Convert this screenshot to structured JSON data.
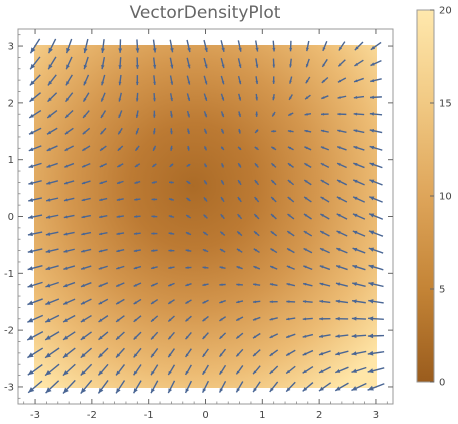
{
  "chart_data": {
    "type": "vector_density",
    "title": "VectorDensityPlot",
    "xlabel": "",
    "ylabel": "",
    "xlim": [
      -3.3,
      3.3
    ],
    "ylim": [
      -3.3,
      3.3
    ],
    "xticks": [
      -3,
      -2,
      -1,
      0,
      1,
      2,
      3
    ],
    "yticks": [
      -3,
      -2,
      -1,
      0,
      1,
      2,
      3
    ],
    "grid": false,
    "density_center": [
      -0.2,
      0.6
    ],
    "density_range": [
      0,
      20
    ],
    "colorbar": {
      "ticks": [
        0,
        5,
        10,
        15,
        20
      ],
      "colors": [
        "#9a5c1d",
        "#c48436",
        "#dea55a",
        "#f1c983",
        "#ffe8ad"
      ]
    },
    "arrow_color": "#4a6694",
    "vector_field": {
      "grid_spacing": 0.3,
      "sample_points": [
        {
          "x": -3.0,
          "y": 3.0,
          "u": -0.5,
          "v": -0.9
        },
        {
          "x": -3.0,
          "y": -3.0,
          "u": -0.7,
          "v": -0.6
        },
        {
          "x": 3.0,
          "y": -3.0,
          "u": -0.8,
          "v": -0.2
        },
        {
          "x": 3.0,
          "y": 3.0,
          "u": -0.3,
          "v": 0.9
        },
        {
          "x": 0.0,
          "y": 0.0,
          "u": -0.1,
          "v": 0.05
        }
      ]
    }
  }
}
